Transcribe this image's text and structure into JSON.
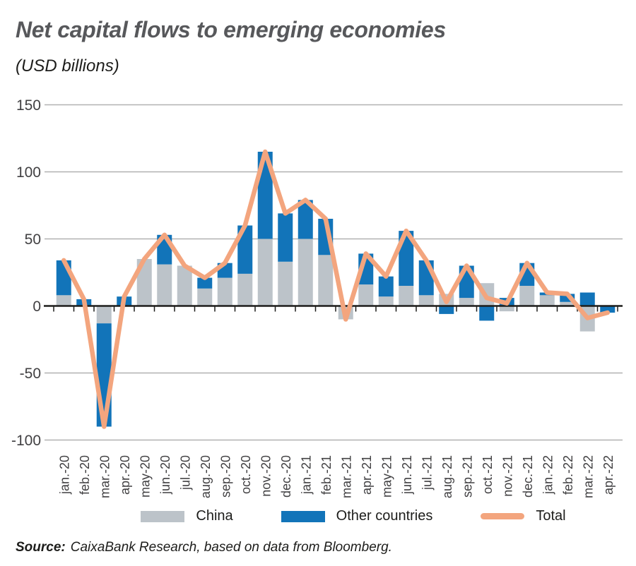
{
  "header": {
    "title": "Net capital flows to emerging economies",
    "subtitle": "(USD billions)"
  },
  "legend": [
    {
      "label": "China",
      "color": "#bcc3c9",
      "swatch": "rect"
    },
    {
      "label": "Other countries",
      "color": "#1274b9",
      "swatch": "rect"
    },
    {
      "label": "Total",
      "color": "#f3a57e",
      "swatch": "line"
    }
  ],
  "source": {
    "label": "Source:",
    "text": "CaixaBank Research, based on data from Bloomberg."
  },
  "colors": {
    "china_bar": "#bcc3c9",
    "other_countries_bar": "#1274b9",
    "total_line": "#f3a57e",
    "gridline": "#b1b1b1",
    "axis": "#1d1d1b",
    "axis_label": "#414042",
    "title_text": "#57585b"
  },
  "chart_data": {
    "type": "bar",
    "subtype": "stacked-bars-with-line",
    "title": "Net capital flows to emerging economies",
    "subtitle": "(USD billions)",
    "xlabel": "",
    "ylabel": "USD billions",
    "ylim": [
      -100,
      150
    ],
    "yticks": [
      150,
      100,
      50,
      0,
      -50,
      -100
    ],
    "grid": true,
    "legend_position": "bottom",
    "categories": [
      "jan.-20",
      "feb.-20",
      "mar.-20",
      "apr.-20",
      "may-20",
      "jun.-20",
      "jul.-20",
      "aug.-20",
      "sep.-20",
      "oct.-20",
      "nov.-20",
      "dec.-20",
      "jan.-21",
      "feb.-21",
      "mar.-21",
      "apr.-21",
      "may-21",
      "jun.-21",
      "jul.-21",
      "aug.-21",
      "sep.-21",
      "oct.-21",
      "nov.-21",
      "dec.-21",
      "jan.-22",
      "feb.-22",
      "mar.-22",
      "apr.-22"
    ],
    "series": [
      {
        "name": "China",
        "type": "bar",
        "color": "#bcc3c9",
        "values": [
          8,
          0,
          -13,
          0,
          35,
          31,
          30,
          13,
          21,
          24,
          50,
          33,
          50,
          38,
          -10,
          16,
          7,
          15,
          8,
          9,
          6,
          17,
          -4,
          15,
          8,
          3,
          -19,
          0
        ]
      },
      {
        "name": "Other countries",
        "type": "bar",
        "color": "#1274b9",
        "values": [
          26,
          5,
          -77,
          7,
          0,
          22,
          0,
          8,
          11,
          36,
          65,
          36,
          29,
          27,
          0,
          23,
          15,
          41,
          26,
          -6,
          24,
          -11,
          6,
          17,
          2,
          6,
          10,
          -5
        ]
      },
      {
        "name": "Total",
        "type": "line",
        "color": "#f3a57e",
        "values": [
          34,
          5,
          -90,
          7,
          35,
          53,
          30,
          21,
          32,
          60,
          115,
          69,
          79,
          65,
          -10,
          39,
          22,
          56,
          34,
          3,
          30,
          6,
          2,
          32,
          10,
          9,
          -9,
          -5
        ]
      }
    ]
  }
}
